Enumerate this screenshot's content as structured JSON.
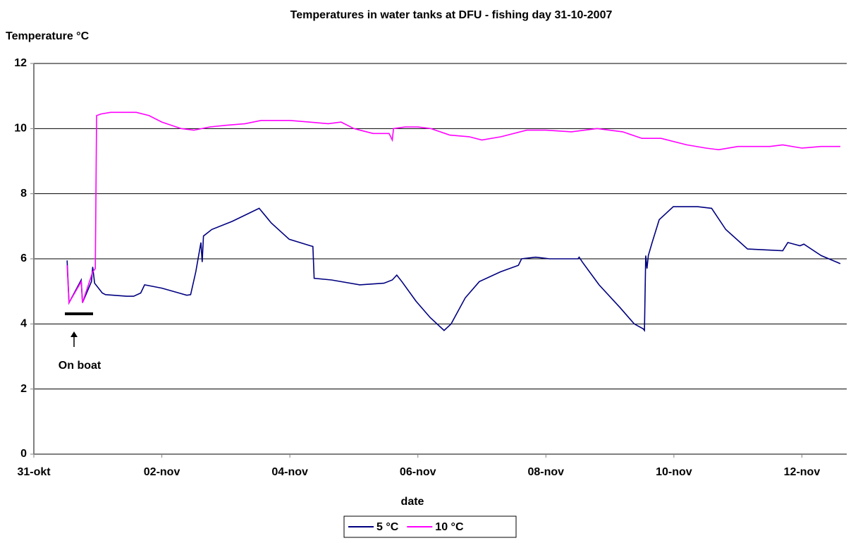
{
  "chart_data": {
    "type": "line",
    "title": "Temperatures in water tanks at DFU - fishing day 31-10-2007",
    "y_label": "Temperature °C",
    "x_label": "date",
    "annotation": "On boat",
    "xlim": [
      0,
      12.7
    ],
    "xticks": [
      {
        "value": 0,
        "label": "31-okt"
      },
      {
        "value": 2,
        "label": "02-nov"
      },
      {
        "value": 4,
        "label": "04-nov"
      },
      {
        "value": 6,
        "label": "06-nov"
      },
      {
        "value": 8,
        "label": "08-nov"
      },
      {
        "value": 10,
        "label": "10-nov"
      },
      {
        "value": 12,
        "label": "12-nov"
      }
    ],
    "ylim": [
      0,
      12
    ],
    "yticks": [
      0,
      2,
      4,
      6,
      8,
      10,
      12
    ],
    "grid": true,
    "legend": "bottom",
    "series": [
      {
        "name": "5 °C",
        "color": "#000080",
        "x": [
          0.52,
          0.55,
          0.74,
          0.76,
          0.9,
          0.92,
          0.95,
          1.07,
          1.12,
          1.45,
          1.56,
          1.67,
          1.73,
          2.0,
          2.39,
          2.45,
          2.53,
          2.61,
          2.63,
          2.65,
          2.78,
          3.1,
          3.52,
          3.71,
          3.99,
          4.32,
          4.36,
          4.38,
          4.65,
          5.09,
          5.47,
          5.6,
          5.67,
          5.75,
          5.97,
          6.19,
          6.41,
          6.52,
          6.74,
          6.96,
          7.29,
          7.57,
          7.62,
          7.84,
          8.06,
          8.5,
          8.52,
          8.57,
          8.83,
          9.16,
          9.38,
          9.52,
          9.54,
          9.56,
          9.58,
          9.6,
          9.66,
          9.77,
          9.99,
          10.37,
          10.59,
          10.81,
          11.15,
          11.7,
          11.78,
          11.97,
          12.03,
          12.3,
          12.6
        ],
        "values": [
          5.95,
          4.65,
          5.35,
          4.65,
          5.3,
          5.75,
          5.25,
          4.95,
          4.9,
          4.85,
          4.85,
          4.95,
          5.2,
          5.1,
          4.88,
          4.9,
          5.6,
          6.5,
          5.9,
          6.7,
          6.9,
          7.15,
          7.55,
          7.1,
          6.6,
          6.4,
          6.38,
          5.4,
          5.35,
          5.2,
          5.25,
          5.35,
          5.5,
          5.3,
          4.7,
          4.2,
          3.8,
          4.0,
          4.8,
          5.3,
          5.6,
          5.8,
          6.0,
          6.05,
          6.0,
          6.0,
          6.05,
          5.9,
          5.2,
          4.5,
          4.0,
          3.85,
          3.8,
          6.1,
          5.7,
          6.1,
          6.5,
          7.2,
          7.6,
          7.6,
          7.55,
          6.9,
          6.3,
          6.25,
          6.5,
          6.4,
          6.45,
          6.1,
          5.85
        ]
      },
      {
        "name": "10 °C",
        "color": "#ff00ff",
        "x": [
          0.52,
          0.55,
          0.74,
          0.76,
          0.92,
          0.96,
          0.98,
          1.05,
          1.2,
          1.6,
          1.8,
          2.0,
          2.3,
          2.5,
          2.75,
          3.0,
          3.3,
          3.55,
          4.0,
          4.3,
          4.6,
          4.8,
          5.0,
          5.3,
          5.55,
          5.6,
          5.62,
          5.8,
          6.0,
          6.2,
          6.5,
          6.8,
          7.0,
          7.3,
          7.7,
          8.0,
          8.4,
          8.8,
          9.2,
          9.5,
          9.8,
          10.2,
          10.5,
          10.7,
          11.0,
          11.5,
          11.7,
          12.0,
          12.3,
          12.6
        ],
        "values": [
          5.8,
          4.65,
          5.3,
          4.65,
          5.6,
          5.7,
          10.4,
          10.45,
          10.5,
          10.5,
          10.4,
          10.2,
          10.0,
          9.95,
          10.05,
          10.1,
          10.15,
          10.25,
          10.25,
          10.2,
          10.15,
          10.2,
          10.0,
          9.85,
          9.85,
          9.65,
          10.0,
          10.05,
          10.05,
          10.0,
          9.8,
          9.75,
          9.65,
          9.75,
          9.95,
          9.95,
          9.9,
          10.0,
          9.9,
          9.7,
          9.7,
          9.5,
          9.4,
          9.35,
          9.45,
          9.45,
          9.5,
          9.4,
          9.45,
          9.45
        ]
      }
    ]
  }
}
